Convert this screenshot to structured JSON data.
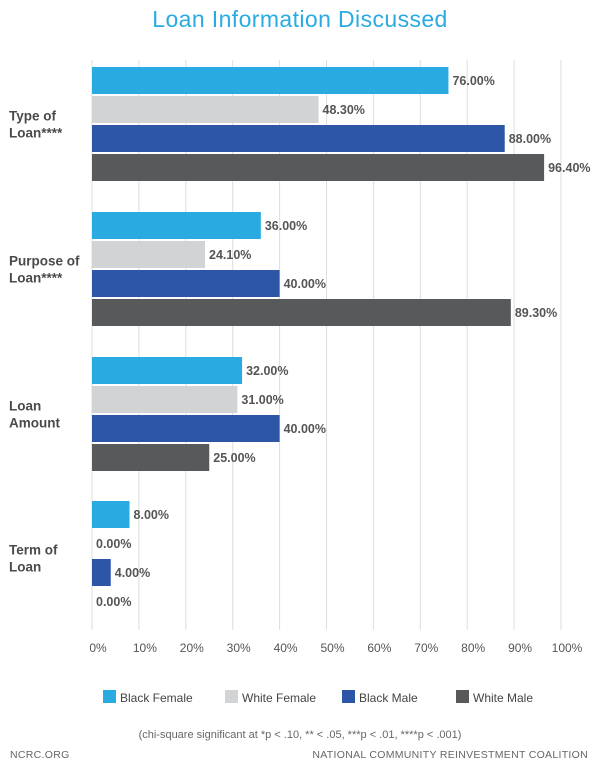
{
  "chart_data": {
    "type": "bar",
    "orientation": "horizontal",
    "title": "Loan Information Discussed",
    "categories": [
      [
        "Type of",
        "Loan****"
      ],
      [
        "Purpose of",
        "Loan****"
      ],
      [
        "Loan",
        "Amount"
      ],
      [
        "Term of",
        "Loan"
      ]
    ],
    "series": [
      {
        "name": "Black Female",
        "color": "#29ABE2",
        "values": [
          76.0,
          36.0,
          32.0,
          8.0
        ],
        "labels": [
          "76.00%",
          "36.00%",
          "32.00%",
          "8.00%"
        ]
      },
      {
        "name": "White Female",
        "color": "#D1D3D4",
        "values": [
          48.3,
          24.1,
          31.0,
          0.0
        ],
        "labels": [
          "48.30%",
          "24.10%",
          "31.00%",
          "0.00%"
        ]
      },
      {
        "name": "Black Male",
        "color": "#2E56A6",
        "values": [
          88.0,
          40.0,
          40.0,
          4.0
        ],
        "labels": [
          "88.00%",
          "40.00%",
          "40.00%",
          "4.00%"
        ]
      },
      {
        "name": "White Male",
        "color": "#58595B",
        "values": [
          96.4,
          89.3,
          25.0,
          0.0
        ],
        "labels": [
          "96.40%",
          "89.30%",
          "25.00%",
          "0.00%"
        ]
      }
    ],
    "xlim": [
      0,
      100
    ],
    "xticks": [
      "0%",
      "10%",
      "20%",
      "30%",
      "40%",
      "50%",
      "60%",
      "70%",
      "80%",
      "90%",
      "100%"
    ],
    "grid": true,
    "legend_position": "bottom",
    "footnote": "(chi-square significant at *p < .10, ** < .05, ***p < .01, ****p < .001)"
  },
  "footer": {
    "left": "NCRC.ORG",
    "right": "NATIONAL COMMUNITY REINVESTMENT COALITION"
  }
}
